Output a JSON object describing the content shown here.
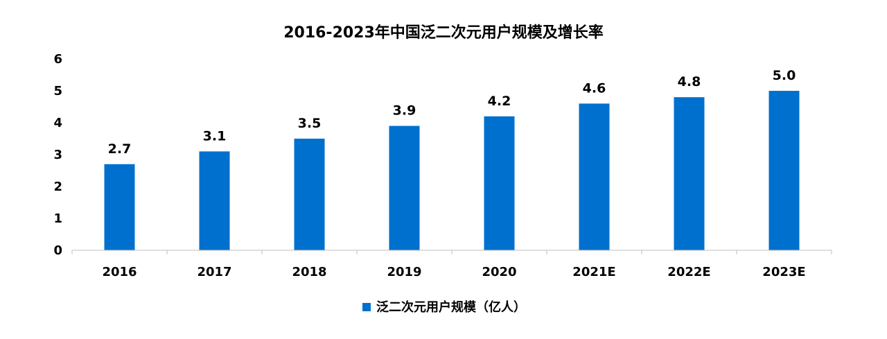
{
  "chart_data": {
    "type": "bar",
    "title": "2016-2023年中国泛二次元用户规模及增长率",
    "categories": [
      "2016",
      "2017",
      "2018",
      "2019",
      "2020",
      "2021E",
      "2022E",
      "2023E"
    ],
    "series": [
      {
        "name": "泛二次元用户规模（亿人）",
        "values": [
          2.7,
          3.1,
          3.5,
          3.9,
          4.2,
          4.6,
          4.8,
          5.0
        ],
        "data_labels": [
          "2.7",
          "3.1",
          "3.5",
          "3.9",
          "4.2",
          "4.6",
          "4.8",
          "5.0"
        ],
        "color": "#0070CE"
      }
    ],
    "ylim": [
      0,
      6
    ],
    "yticks": [
      "0",
      "1",
      "2",
      "3",
      "4",
      "5",
      "6"
    ],
    "xlabel": "",
    "ylabel": "",
    "grid": false,
    "legend_position": "bottom"
  }
}
